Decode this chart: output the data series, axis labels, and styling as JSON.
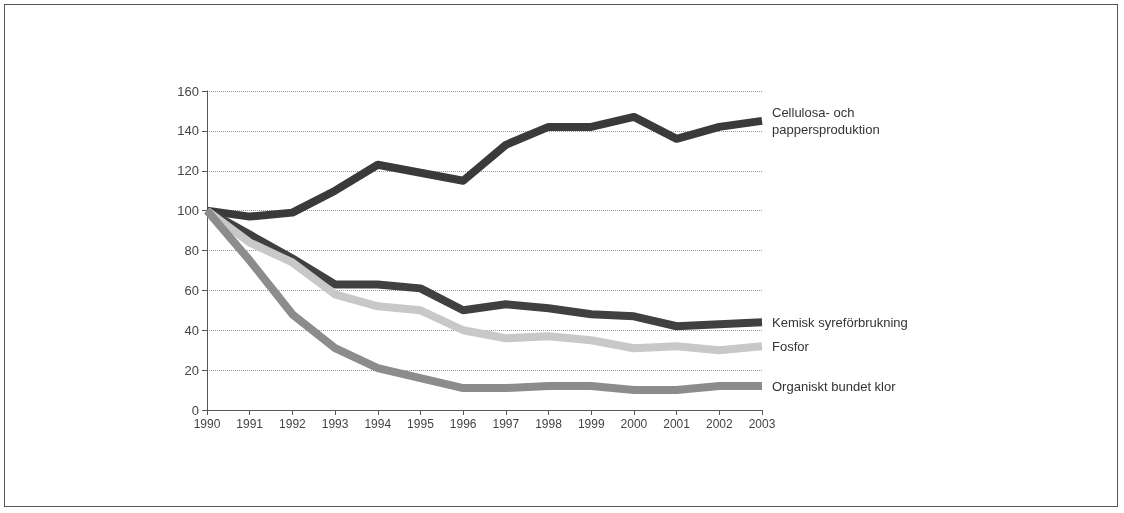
{
  "chart_data": {
    "type": "line",
    "categories": [
      "1990",
      "1991",
      "1992",
      "1993",
      "1994",
      "1995",
      "1996",
      "1997",
      "1998",
      "1999",
      "2000",
      "2001",
      "2002",
      "2003"
    ],
    "series": [
      {
        "name": "Cellulosa- och pappersproduktion",
        "color": "#3a3a3a",
        "values": [
          100,
          97,
          99,
          110,
          123,
          119,
          115,
          133,
          142,
          142,
          147,
          136,
          142,
          145
        ]
      },
      {
        "name": "Kemisk syreförbrukning",
        "color": "#404040",
        "values": [
          100,
          88,
          76,
          63,
          63,
          61,
          50,
          53,
          51,
          48,
          47,
          42,
          43,
          44
        ]
      },
      {
        "name": "Fosfor",
        "color": "#c8c8c8",
        "values": [
          100,
          84,
          74,
          58,
          52,
          50,
          40,
          36,
          37,
          35,
          31,
          32,
          30,
          32
        ]
      },
      {
        "name": "Organiskt bundet klor",
        "color": "#8c8c8c",
        "values": [
          100,
          75,
          48,
          31,
          21,
          16,
          11,
          11,
          12,
          12,
          10,
          10,
          12,
          12
        ]
      }
    ],
    "ylim": [
      0,
      160
    ],
    "yticks": [
      0,
      20,
      40,
      60,
      80,
      100,
      120,
      140,
      160
    ],
    "grid": "y",
    "legend": false,
    "marker": "none",
    "line_style": "solid"
  }
}
